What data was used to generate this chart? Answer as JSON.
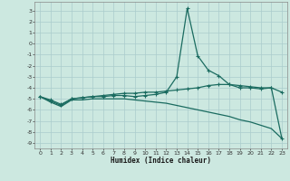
{
  "title": "",
  "xlabel": "Humidex (Indice chaleur)",
  "ylabel": "",
  "bg_color": "#cce8e0",
  "grid_color": "#aacccc",
  "line_color": "#1a6b60",
  "xlim": [
    -0.5,
    23.5
  ],
  "ylim": [
    -9.5,
    3.8
  ],
  "yticks": [
    -9,
    -8,
    -7,
    -6,
    -5,
    -4,
    -3,
    -2,
    -1,
    0,
    1,
    2,
    3
  ],
  "xticks": [
    0,
    1,
    2,
    3,
    4,
    5,
    6,
    7,
    8,
    9,
    10,
    11,
    12,
    13,
    14,
    15,
    16,
    17,
    18,
    19,
    20,
    21,
    22,
    23
  ],
  "line1_x": [
    0,
    1,
    2,
    3,
    4,
    5,
    6,
    7,
    8,
    9,
    10,
    11,
    12,
    13,
    14,
    15,
    16,
    17,
    18,
    19,
    20,
    21,
    22,
    23
  ],
  "line1_y": [
    -4.8,
    -5.2,
    -5.6,
    -5.0,
    -4.9,
    -4.8,
    -4.8,
    -4.7,
    -4.7,
    -4.8,
    -4.7,
    -4.6,
    -4.4,
    -3.0,
    3.2,
    -1.1,
    -2.4,
    -2.9,
    -3.7,
    -4.0,
    -4.0,
    -4.1,
    -4.0,
    -8.6
  ],
  "line2_x": [
    0,
    1,
    2,
    3,
    4,
    5,
    6,
    7,
    8,
    9,
    10,
    11,
    12,
    13,
    14,
    15,
    16,
    17,
    18,
    19,
    20,
    21,
    22,
    23
  ],
  "line2_y": [
    -4.8,
    -5.1,
    -5.5,
    -5.0,
    -4.9,
    -4.8,
    -4.7,
    -4.6,
    -4.5,
    -4.5,
    -4.4,
    -4.4,
    -4.3,
    -4.2,
    -4.1,
    -4.0,
    -3.8,
    -3.7,
    -3.7,
    -3.8,
    -3.9,
    -4.0,
    -4.0,
    -4.4
  ],
  "line3_x": [
    0,
    1,
    2,
    3,
    4,
    5,
    6,
    7,
    8,
    9,
    10,
    11,
    12,
    13,
    14,
    15,
    16,
    17,
    18,
    19,
    20,
    21,
    22,
    23
  ],
  "line3_y": [
    -4.8,
    -5.3,
    -5.7,
    -5.1,
    -5.1,
    -5.0,
    -5.0,
    -5.0,
    -5.0,
    -5.1,
    -5.2,
    -5.3,
    -5.4,
    -5.6,
    -5.8,
    -6.0,
    -6.2,
    -6.4,
    -6.6,
    -6.9,
    -7.1,
    -7.4,
    -7.7,
    -8.6
  ]
}
